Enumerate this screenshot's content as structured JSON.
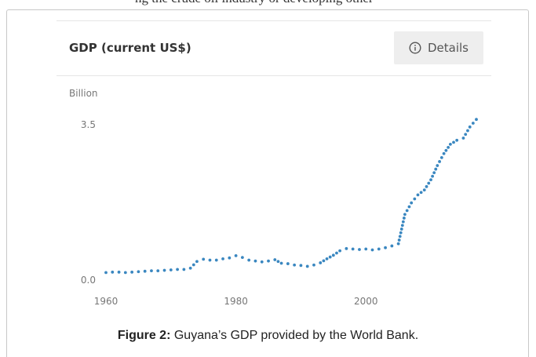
{
  "header_fragment": "ng the crude oil industry or developing other",
  "card": {
    "title": "GDP (current US$)",
    "details_label": "Details",
    "info_icon": "info-circle-icon"
  },
  "caption": {
    "label": "Figure 2:",
    "text": " Guyana’s GDP provided by the World Bank."
  },
  "colors": {
    "series": "#3a87c0",
    "axis_text": "#777777",
    "details_bg": "#eeeeee"
  },
  "chart_data": {
    "type": "line",
    "title": "GDP (current US$)",
    "ylabel": "Billion",
    "xlabel": "",
    "xlim": [
      1960,
      2017
    ],
    "ylim": [
      0.0,
      3.5
    ],
    "y_ticks": [
      0.0,
      3.5
    ],
    "y_tick_labels": [
      "0.0",
      "3.5"
    ],
    "x_ticks": [
      1960,
      1980,
      2000
    ],
    "x_tick_labels": [
      "1960",
      "1980",
      "2000"
    ],
    "grid": false,
    "legend": "none",
    "style": "dotted",
    "x": [
      1960,
      1961,
      1962,
      1963,
      1964,
      1965,
      1966,
      1967,
      1968,
      1969,
      1970,
      1971,
      1972,
      1973,
      1974,
      1975,
      1976,
      1977,
      1978,
      1979,
      1980,
      1981,
      1982,
      1983,
      1984,
      1985,
      1986,
      1987,
      1988,
      1989,
      1990,
      1991,
      1992,
      1993,
      1994,
      1995,
      1996,
      1997,
      1998,
      1999,
      2000,
      2001,
      2002,
      2003,
      2004,
      2005,
      2006,
      2007,
      2008,
      2009,
      2010,
      2011,
      2012,
      2013,
      2014,
      2015,
      2016,
      2017
    ],
    "values": [
      0.17,
      0.18,
      0.18,
      0.17,
      0.18,
      0.19,
      0.2,
      0.21,
      0.21,
      0.22,
      0.23,
      0.24,
      0.24,
      0.27,
      0.42,
      0.47,
      0.45,
      0.45,
      0.48,
      0.5,
      0.55,
      0.51,
      0.45,
      0.43,
      0.41,
      0.43,
      0.46,
      0.38,
      0.37,
      0.34,
      0.33,
      0.31,
      0.34,
      0.39,
      0.48,
      0.56,
      0.66,
      0.71,
      0.7,
      0.69,
      0.7,
      0.68,
      0.7,
      0.73,
      0.77,
      0.82,
      1.48,
      1.74,
      1.92,
      2.03,
      2.26,
      2.58,
      2.85,
      3.06,
      3.15,
      3.2,
      3.45,
      3.62
    ]
  }
}
